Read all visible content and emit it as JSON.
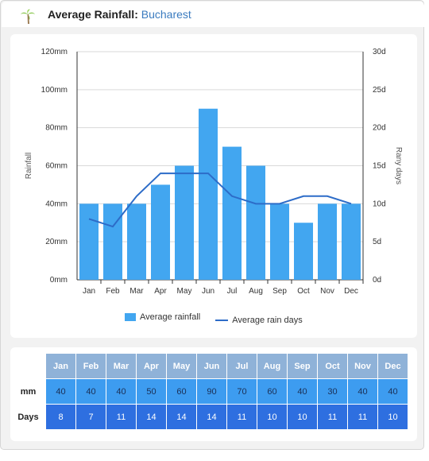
{
  "header": {
    "title_bold": "Average Rainfall:",
    "title_city": "Bucharest"
  },
  "colors": {
    "bar": "#42a6f0",
    "line": "#2d6cc8",
    "table_header": "#8fb2d8",
    "row_mm": "#3d9cf0",
    "row_days": "#2e6fe0"
  },
  "chart_data": {
    "type": "bar",
    "categories": [
      "Jan",
      "Feb",
      "Mar",
      "Apr",
      "May",
      "Jun",
      "Jul",
      "Aug",
      "Sep",
      "Oct",
      "Nov",
      "Dec"
    ],
    "series": [
      {
        "name": "Average rainfall",
        "type": "bar",
        "axis": "left",
        "values": [
          40,
          40,
          40,
          50,
          60,
          90,
          70,
          60,
          40,
          30,
          40,
          40
        ]
      },
      {
        "name": "Average rain days",
        "type": "line",
        "axis": "right",
        "values": [
          8,
          7,
          11,
          14,
          14,
          14,
          11,
          10,
          10,
          11,
          11,
          10
        ]
      }
    ],
    "ylabel": "Rainfall",
    "y2label": "Rany days",
    "ylim": [
      0,
      120
    ],
    "y2lim": [
      0,
      30
    ],
    "yticks": [
      "0mm",
      "20mm",
      "40mm",
      "60mm",
      "80mm",
      "100mm",
      "120mm"
    ],
    "y2ticks": [
      "0d",
      "5d",
      "10d",
      "15d",
      "20d",
      "25d",
      "30d"
    ],
    "grid": true,
    "legend_position": "bottom"
  },
  "table": {
    "months": [
      "Jan",
      "Feb",
      "Mar",
      "Apr",
      "May",
      "Jun",
      "Jul",
      "Aug",
      "Sep",
      "Oct",
      "Nov",
      "Dec"
    ],
    "mm_label": "mm",
    "days_label": "Days",
    "mm": [
      "40",
      "40",
      "40",
      "50",
      "60",
      "90",
      "70",
      "60",
      "40",
      "30",
      "40",
      "40"
    ],
    "days": [
      "8",
      "7",
      "11",
      "14",
      "14",
      "14",
      "11",
      "10",
      "10",
      "11",
      "11",
      "10"
    ]
  }
}
